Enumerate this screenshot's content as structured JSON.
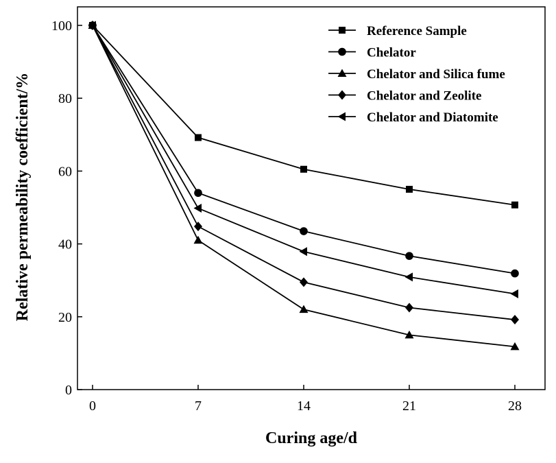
{
  "chart_data": {
    "type": "line",
    "title": "",
    "xlabel": "Curing age/d",
    "ylabel": "Relative permeability coefficient/%",
    "x": [
      0,
      7,
      14,
      21,
      28
    ],
    "x_ticks": [
      "0",
      "7",
      "14",
      "21",
      "28"
    ],
    "y_ticks": [
      "0",
      "20",
      "40",
      "60",
      "80",
      "100"
    ],
    "xlim": [
      -1,
      30
    ],
    "ylim": [
      0,
      100
    ],
    "grid": false,
    "legend_position": "top-right",
    "series": [
      {
        "name": "Reference Sample",
        "marker": "square",
        "values": [
          100,
          69.2,
          60.5,
          55.0,
          50.7
        ]
      },
      {
        "name": "Chelator",
        "marker": "circle",
        "values": [
          100,
          54.0,
          43.5,
          36.7,
          31.9
        ]
      },
      {
        "name": "Chelator and Silica fume",
        "marker": "triangle-up",
        "values": [
          100,
          41.0,
          22.0,
          15.0,
          11.8
        ]
      },
      {
        "name": "Chelator and Zeolite",
        "marker": "diamond",
        "values": [
          100,
          44.8,
          29.5,
          22.5,
          19.2
        ]
      },
      {
        "name": "Chelator and Diatomite",
        "marker": "triangle-left",
        "values": [
          100,
          49.8,
          37.9,
          30.9,
          26.3
        ]
      }
    ]
  }
}
